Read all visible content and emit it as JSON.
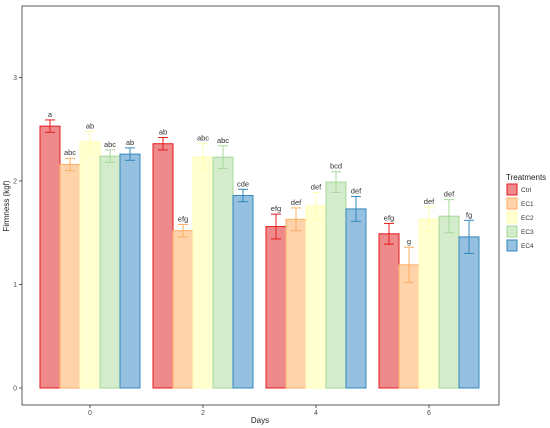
{
  "chart_data": {
    "type": "bar",
    "title": "",
    "xlabel": "Days",
    "ylabel": "Firmness (kgf)",
    "categories": [
      "0",
      "2",
      "4",
      "6"
    ],
    "ylim": [
      0,
      3.5
    ],
    "yticks": [
      0,
      1,
      2,
      3
    ],
    "grid": false,
    "legend_title": "Treatments",
    "legend_position": "right",
    "series": [
      {
        "name": "Ctrl",
        "fill": "#ef8a8c",
        "stroke": "#e41a1c",
        "values": [
          2.53,
          2.36,
          1.56,
          1.49
        ],
        "errors": [
          0.06,
          0.06,
          0.12,
          0.1
        ],
        "labels": [
          "a",
          "ab",
          "efg",
          "efg"
        ]
      },
      {
        "name": "EC1",
        "fill": "#ffd3a9",
        "stroke": "#fdae61",
        "values": [
          2.16,
          1.52,
          1.63,
          1.19
        ],
        "errors": [
          0.06,
          0.06,
          0.11,
          0.17
        ],
        "labels": [
          "abc",
          "efg",
          "def",
          "g"
        ]
      },
      {
        "name": "EC2",
        "fill": "#ffffd0",
        "stroke": "#ffffb3",
        "values": [
          2.38,
          2.23,
          1.76,
          1.63
        ],
        "errors": [
          0.1,
          0.13,
          0.13,
          0.12
        ],
        "labels": [
          "ab",
          "abc",
          "def",
          "def"
        ]
      },
      {
        "name": "EC3",
        "fill": "#d3eccb",
        "stroke": "#a6d99a",
        "values": [
          2.24,
          2.23,
          1.99,
          1.66
        ],
        "errors": [
          0.06,
          0.11,
          0.1,
          0.16
        ],
        "labels": [
          "abc",
          "abc",
          "bcd",
          "def"
        ]
      },
      {
        "name": "EC4",
        "fill": "#96c0e0",
        "stroke": "#3288bd",
        "values": [
          2.26,
          1.86,
          1.73,
          1.46
        ],
        "errors": [
          0.06,
          0.06,
          0.12,
          0.16
        ],
        "labels": [
          "ab",
          "cde",
          "def",
          "fg"
        ]
      }
    ]
  }
}
